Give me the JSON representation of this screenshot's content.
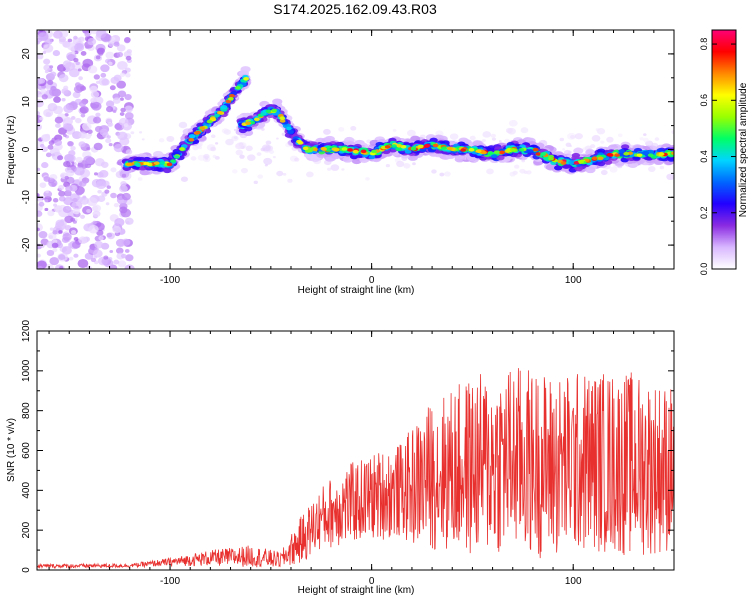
{
  "title": "S174.2025.162.09.43.R03",
  "colors": {
    "snr_line": "#e8302e",
    "axis": "#000000",
    "colorbar": [
      "#ffffff",
      "#d9b8ff",
      "#8a2be2",
      "#2200ff",
      "#0066ff",
      "#00d5ff",
      "#00ff66",
      "#99ff00",
      "#ffff00",
      "#ff8800",
      "#ff0000",
      "#ff0077"
    ]
  },
  "chart_data": [
    {
      "type": "heatmap",
      "ylabel": "Frequency (Hz)",
      "xlabel": "Height of straight line (km)",
      "xlim": [
        -166,
        150
      ],
      "ylim": [
        -25,
        25
      ],
      "xticks": [
        -100,
        0,
        100
      ],
      "yticks": [
        -20,
        -10,
        0,
        10,
        20
      ],
      "colorbar": {
        "label": "Normalized spectral amplitude",
        "range": [
          0,
          0.85
        ],
        "ticks": [
          0.0,
          0.2,
          0.4,
          0.6,
          0.8
        ]
      },
      "ridges": [
        {
          "points": [
            [
              -122,
              -3
            ],
            [
              -110,
              -3
            ],
            [
              -100,
              -3
            ],
            [
              -90,
              2
            ],
            [
              -80,
              6
            ],
            [
              -74,
              8
            ],
            [
              -68,
              12
            ],
            [
              -62,
              15
            ]
          ],
          "amplitude": 0.55
        },
        {
          "points": [
            [
              -65,
              5
            ],
            [
              -58,
              6
            ],
            [
              -52,
              8
            ],
            [
              -47,
              8
            ],
            [
              -42,
              5
            ],
            [
              -37,
              2
            ],
            [
              -32,
              0
            ],
            [
              -25,
              0
            ]
          ],
          "amplitude": 0.5
        },
        {
          "points": [
            [
              -25,
              0
            ],
            [
              -10,
              0
            ],
            [
              0,
              -1
            ],
            [
              10,
              1
            ],
            [
              20,
              0
            ],
            [
              30,
              1
            ],
            [
              40,
              0
            ],
            [
              50,
              0
            ],
            [
              60,
              -1
            ],
            [
              70,
              0
            ],
            [
              80,
              0
            ],
            [
              90,
              -2
            ],
            [
              100,
              -3
            ],
            [
              110,
              -2
            ],
            [
              120,
              -1
            ],
            [
              130,
              -1
            ],
            [
              140,
              -1
            ],
            [
              150,
              -1
            ]
          ],
          "amplitude": 0.6
        }
      ]
    },
    {
      "type": "line",
      "ylabel": "SNR (10 * v/v)",
      "xlabel": "Height of straight line (km)",
      "xlim": [
        -166,
        150
      ],
      "ylim": [
        0,
        1200
      ],
      "xticks": [
        -100,
        0,
        100
      ],
      "yticks": [
        0,
        200,
        400,
        600,
        800,
        1000,
        1200
      ],
      "envelope": {
        "x": [
          -166,
          -120,
          -100,
          -80,
          -60,
          -45,
          -35,
          -25,
          -15,
          -5,
          5,
          15,
          20,
          30,
          50,
          70,
          90,
          110,
          130,
          150
        ],
        "center": [
          20,
          22,
          40,
          60,
          70,
          50,
          150,
          260,
          320,
          350,
          380,
          400,
          420,
          480,
          520,
          560,
          520,
          550,
          530,
          510
        ],
        "spread": [
          10,
          10,
          20,
          40,
          55,
          40,
          120,
          160,
          200,
          210,
          230,
          240,
          300,
          380,
          460,
          480,
          470,
          460,
          470,
          420
        ]
      }
    }
  ]
}
